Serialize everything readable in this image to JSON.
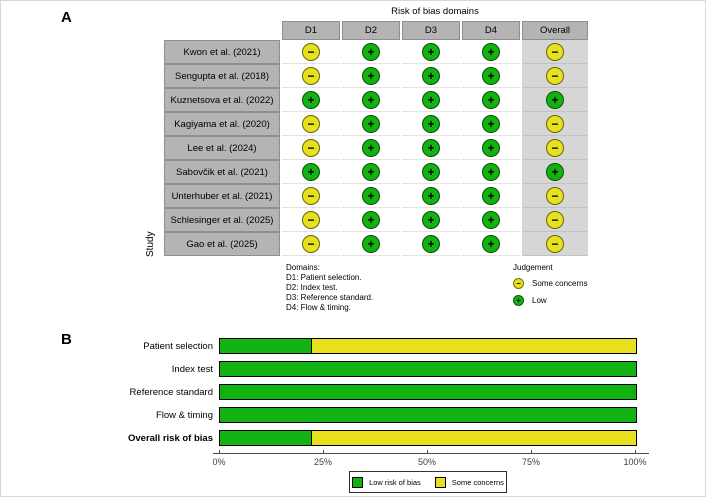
{
  "colors": {
    "low": "#12b212",
    "some_concerns": "#e6e01e",
    "header_gray": "#b4b4b4",
    "overall_column_gray": "#d6d6d6"
  },
  "judgement_styles": {
    "+": {
      "glyph": "+",
      "color": "#12b212",
      "label": "Low"
    },
    "-": {
      "glyph": "−",
      "color": "#e6e01e",
      "label": "Some concerns"
    }
  },
  "panel_a": {
    "footnote_domains_title": "Domains:",
    "judgement_title": "Judgement",
    "judgement_items": [
      {
        "symbol": "-",
        "label": "Some concerns"
      },
      {
        "symbol": "+",
        "label": "Low"
      }
    ]
  },
  "chart_data": [
    {
      "type": "table",
      "panel": "A",
      "title": "Risk of bias domains",
      "row_axis_label": "Study",
      "columns": [
        "D1",
        "D2",
        "D3",
        "D4",
        "Overall"
      ],
      "domain_definitions": [
        "D1: Patient selection.",
        "D2: Index test.",
        "D3: Reference standard.",
        "D4: Flow & timing."
      ],
      "judgement_scale": [
        "Some concerns",
        "Low"
      ],
      "rows": [
        {
          "study": "Kwon et al. (2021)",
          "values": [
            "-",
            "+",
            "+",
            "+",
            "-"
          ]
        },
        {
          "study": "Sengupta et al. (2018)",
          "values": [
            "-",
            "+",
            "+",
            "+",
            "-"
          ]
        },
        {
          "study": "Kuznetsova et al. (2022)",
          "values": [
            "+",
            "+",
            "+",
            "+",
            "+"
          ]
        },
        {
          "study": "Kagiyama et al. (2020)",
          "values": [
            "-",
            "+",
            "+",
            "+",
            "-"
          ]
        },
        {
          "study": "Lee et al. (2024)",
          "values": [
            "-",
            "+",
            "+",
            "+",
            "-"
          ]
        },
        {
          "study": "Sabovčik et al. (2021)",
          "values": [
            "+",
            "+",
            "+",
            "+",
            "+"
          ]
        },
        {
          "study": "Unterhuber et al. (2021)",
          "values": [
            "-",
            "+",
            "+",
            "+",
            "-"
          ]
        },
        {
          "study": "Schlesinger et al. (2025)",
          "values": [
            "-",
            "+",
            "+",
            "+",
            "-"
          ]
        },
        {
          "study": "Gao et al. (2025)",
          "values": [
            "-",
            "+",
            "+",
            "+",
            "-"
          ]
        }
      ]
    },
    {
      "type": "bar",
      "panel": "B",
      "orientation": "horizontal",
      "stacked": true,
      "categories": [
        "Patient selection",
        "Index test",
        "Reference standard",
        "Flow & timing",
        "Overall risk of bias"
      ],
      "emphasized_category": "Overall risk of bias",
      "series": [
        {
          "name": "Low risk of bias",
          "color": "#12b212",
          "values": [
            22.2,
            100,
            100,
            100,
            22.2
          ]
        },
        {
          "name": "Some concerns",
          "color": "#e6e01e",
          "values": [
            77.8,
            0,
            0,
            0,
            77.8
          ]
        }
      ],
      "x_ticks": [
        "0%",
        "25%",
        "50%",
        "75%",
        "100%"
      ],
      "xlim": [
        0,
        100
      ],
      "grid": false,
      "legend_position": "bottom"
    }
  ]
}
